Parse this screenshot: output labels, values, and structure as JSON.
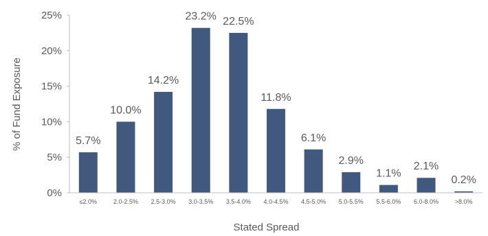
{
  "colors": {
    "bar": "#41597F",
    "axis": "#BFBFBF",
    "text": "#595959"
  },
  "chart_data": {
    "type": "bar",
    "title": "",
    "xlabel": "Stated Spread",
    "ylabel": "% of Fund Exposure",
    "ylim": [
      0,
      25
    ],
    "yticks": [
      "0%",
      "5%",
      "10%",
      "15%",
      "20%",
      "25%"
    ],
    "ytick_values": [
      0,
      5,
      10,
      15,
      20,
      25
    ],
    "grid": false,
    "legend": "none",
    "categories": [
      "≤2.0%",
      "2.0-2.5%",
      "2.5-3.0%",
      "3.0-3.5%",
      "3.5-4.0%",
      "4.0-4.5%",
      "4.5-5.0%",
      "5.0-5.5%",
      "5.5-6.0%",
      "6.0-8.0%",
      ">8.0%"
    ],
    "values": [
      5.7,
      10.0,
      14.2,
      23.2,
      22.5,
      11.8,
      6.1,
      2.9,
      1.1,
      2.1,
      0.2
    ],
    "data_labels": [
      "5.7%",
      "10.0%",
      "14.2%",
      "23.2%",
      "22.5%",
      "11.8%",
      "6.1%",
      "2.9%",
      "1.1%",
      "2.1%",
      "0.2%"
    ]
  }
}
